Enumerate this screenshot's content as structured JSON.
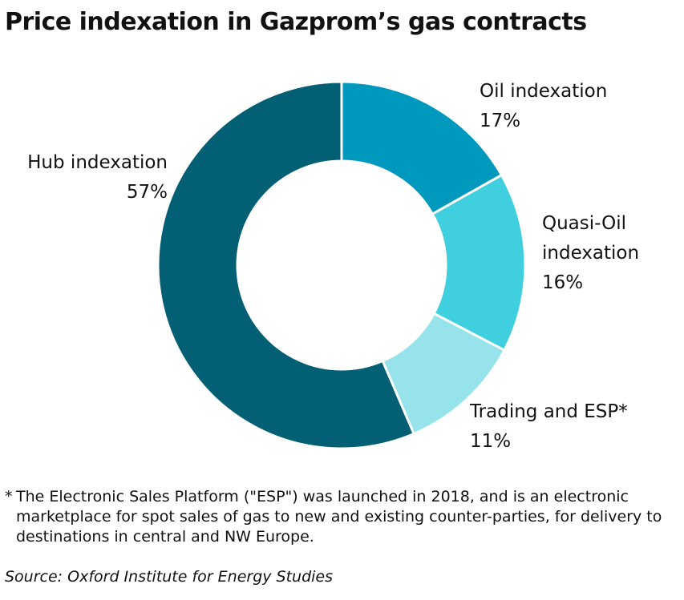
{
  "chart_data": {
    "type": "pie",
    "title": "Price indexation in Gazprom’s gas contracts",
    "categories": [
      "Oil indexation",
      "Quasi-Oil indexation",
      "Trading and ESP*",
      "Hub indexation"
    ],
    "values": [
      17,
      16,
      11,
      57
    ],
    "value_labels": [
      "17%",
      "16%",
      "11%",
      "57%"
    ],
    "label_lines": [
      [
        "Oil indexation",
        "17%"
      ],
      [
        "Quasi-Oil",
        "indexation",
        "16%"
      ],
      [
        "Trading and ESP*",
        "11%"
      ],
      [
        "Hub indexation",
        "57%"
      ]
    ],
    "colors": [
      "#0099bd",
      "#3fcfdf",
      "#96e3ec",
      "#035f74"
    ],
    "donut": true,
    "legend": "none"
  },
  "footnote": {
    "marker": "*",
    "text": "The Electronic Sales Platform (\"ESP\") was launched in 2018, and is an electronic marketplace for spot sales of gas to new and existing counter-parties, for delivery to destinations in central and NW Europe."
  },
  "source": "Source: Oxford Institute for Energy Studies"
}
